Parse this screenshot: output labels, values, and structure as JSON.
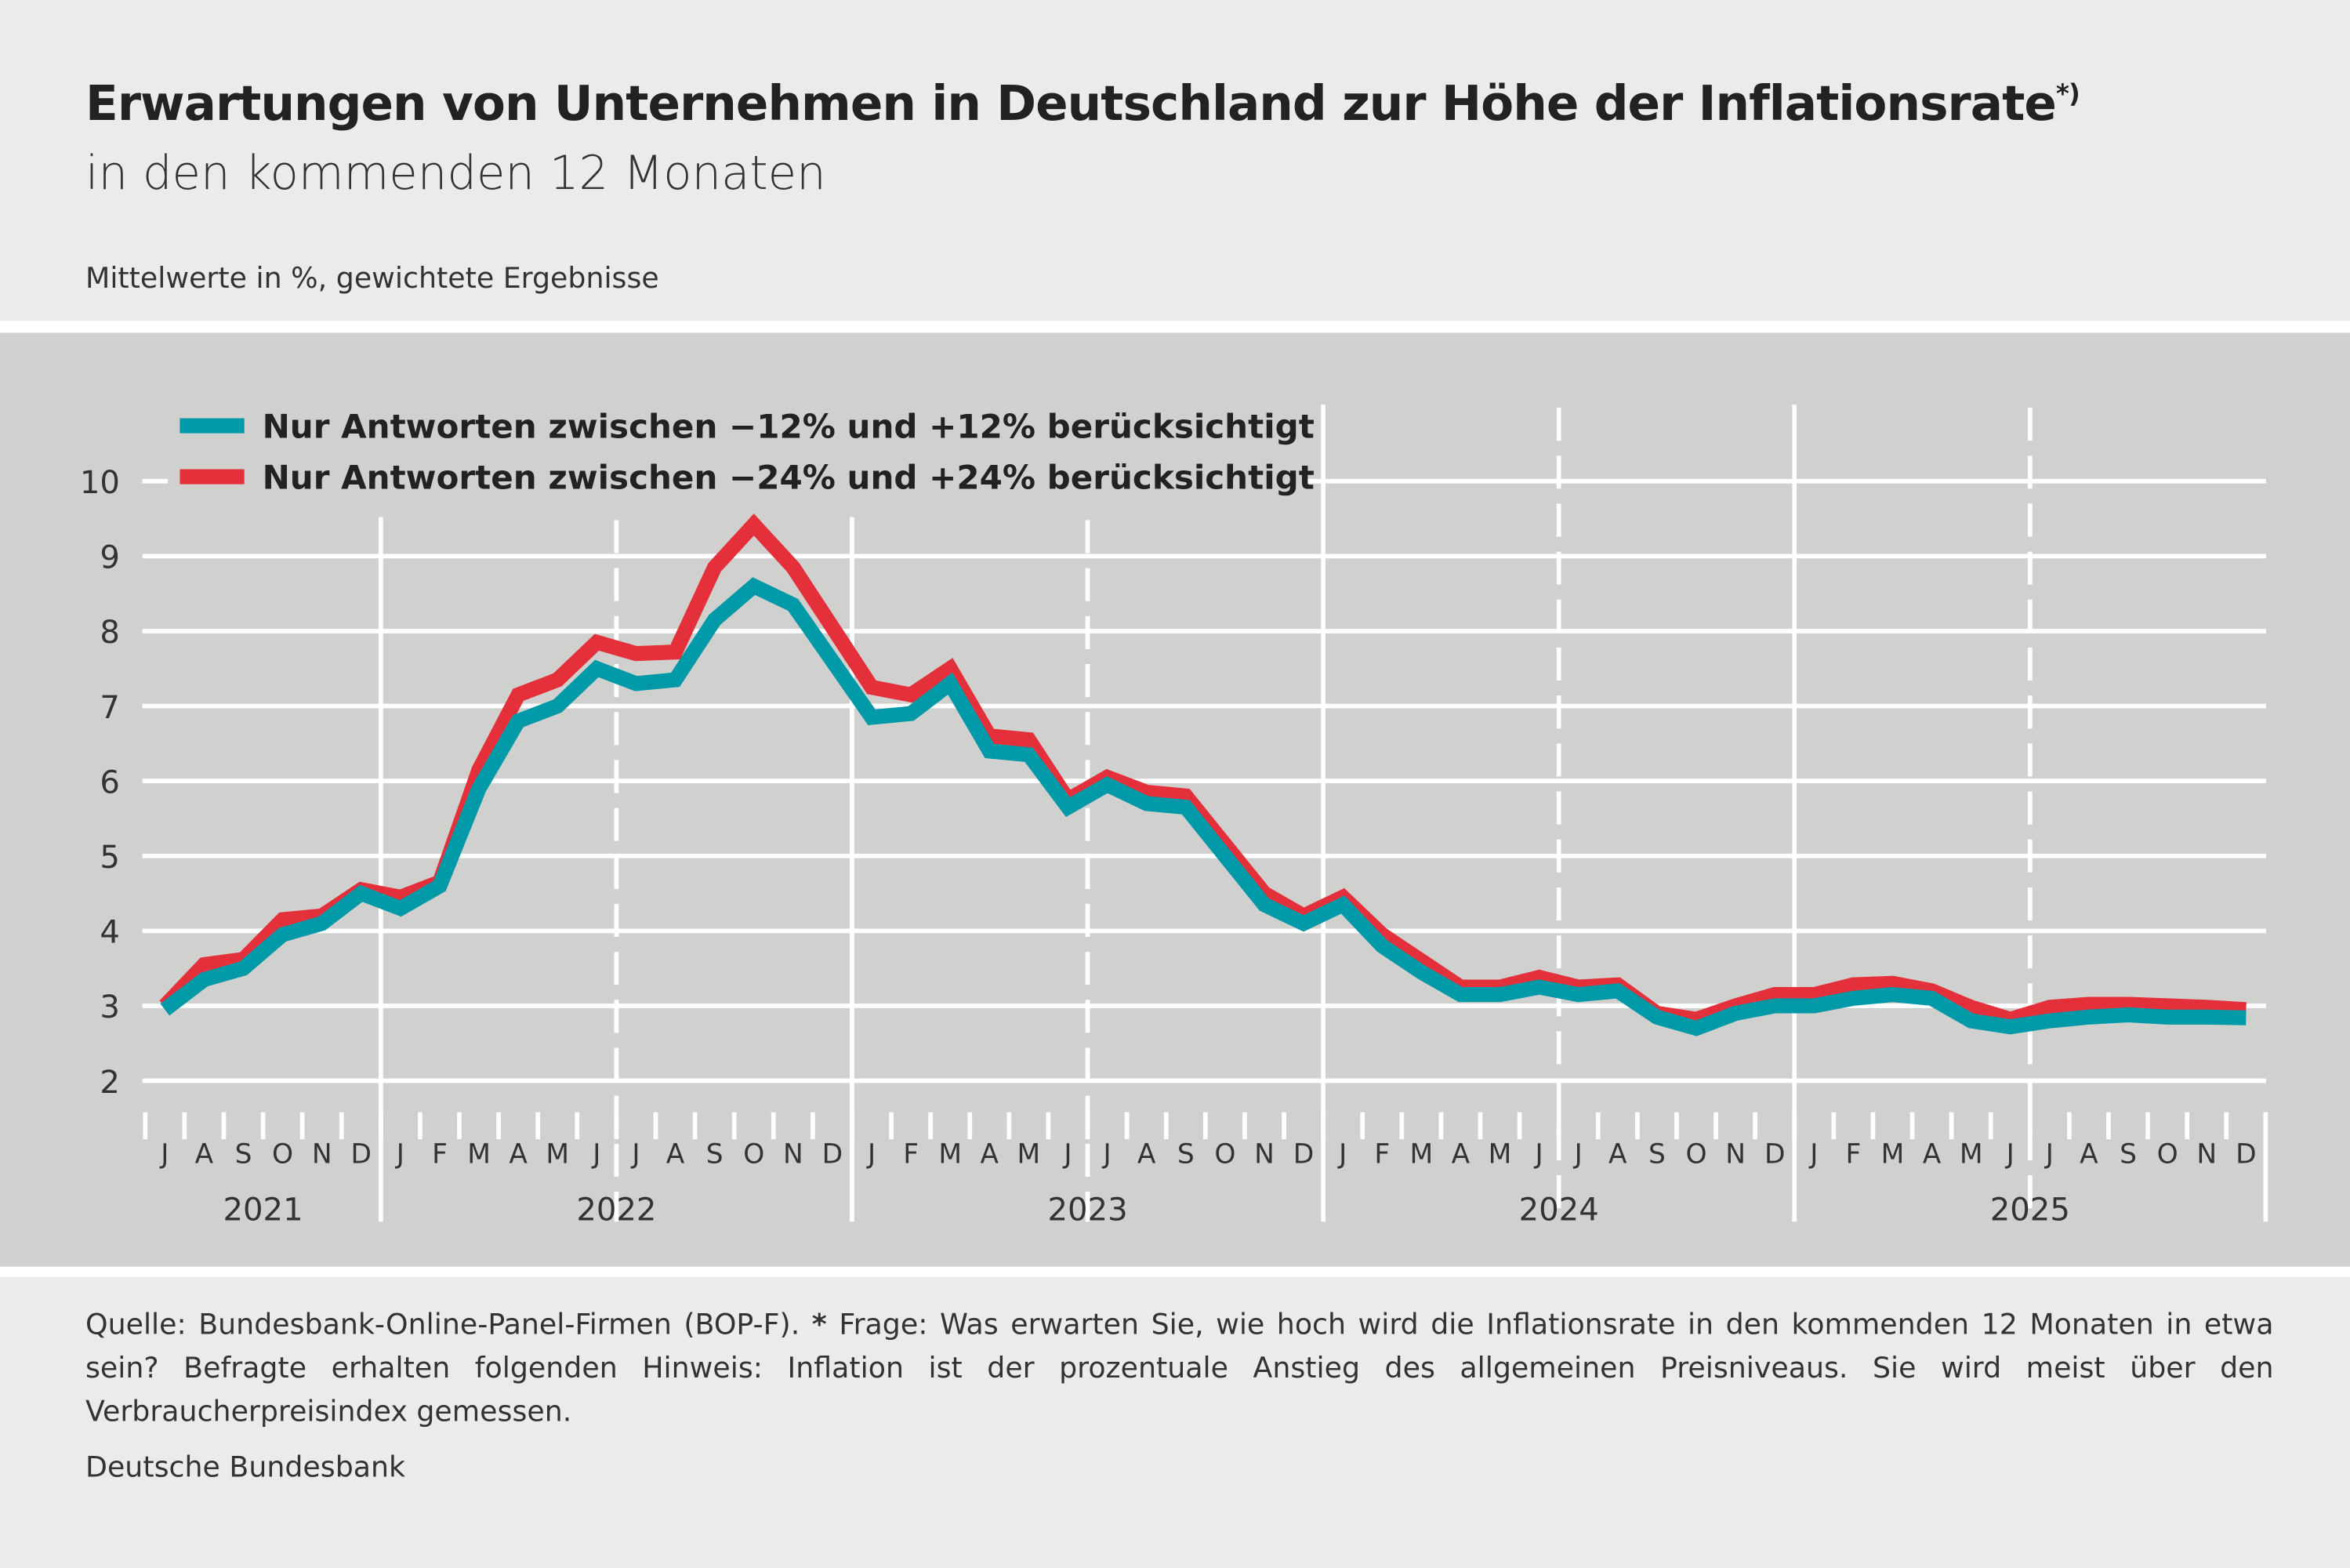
{
  "title": "Erwartungen von Unternehmen in Deutschland zur Höhe der Inflationsrate",
  "title_marker": "*)",
  "subtitle": "in den kommenden 12 Monaten",
  "unit_note": "Mittelwerte in %, gewichtete Ergebnisse",
  "footnote": {
    "source": "Quelle: Bundesbank-Online-Panel-Firmen (BOP-F).",
    "star": "*",
    "text": "Frage: Was erwarten Sie, wie hoch wird die Inflationsrate in den kommenden 12 Monaten in etwa sein? Befragte erhalten folgenden Hinweis: Inflation ist der prozentuale Anstieg des allgemeinen Preisniveaus. Sie wird meist über den Verbraucherpreisindex gemessen."
  },
  "publisher": "Deutsche Bundesbank",
  "chart_data": {
    "type": "line",
    "ylim": [
      2,
      10
    ],
    "yticks": [
      2,
      3,
      4,
      5,
      6,
      7,
      8,
      9,
      10
    ],
    "grid": true,
    "legend_placement": "top-left",
    "month_labels": [
      "J",
      "A",
      "S",
      "O",
      "N",
      "D",
      "J",
      "F",
      "M",
      "A",
      "M",
      "J",
      "J",
      "A",
      "S",
      "O",
      "N",
      "D",
      "J",
      "F",
      "M",
      "A",
      "M",
      "J",
      "J",
      "A",
      "S",
      "O",
      "N",
      "D",
      "J",
      "F",
      "M",
      "A",
      "M",
      "J",
      "J",
      "A",
      "S",
      "O",
      "N",
      "D",
      "J",
      "F",
      "M",
      "A",
      "M",
      "J",
      "J",
      "A",
      "S",
      "O",
      "N",
      "D"
    ],
    "year_labels": [
      "2021",
      "2022",
      "2023",
      "2024",
      "2025"
    ],
    "x_range": [
      "2021-07",
      "2025-12"
    ],
    "series": [
      {
        "name": "Nur Antworten zwischen −12% und +12% berücksichtigt",
        "color": "#0099a8",
        "values": [
          2.95,
          3.35,
          3.5,
          3.95,
          4.1,
          4.5,
          4.3,
          4.6,
          5.9,
          6.8,
          7.0,
          7.5,
          7.3,
          7.35,
          8.15,
          8.6,
          8.35,
          7.6,
          6.85,
          6.9,
          7.3,
          6.4,
          6.35,
          5.65,
          5.95,
          5.7,
          5.65,
          5.0,
          4.35,
          4.1,
          4.35,
          3.8,
          3.45,
          3.15,
          3.15,
          3.25,
          3.15,
          3.2,
          2.85,
          2.7,
          2.9,
          3.0,
          3.0,
          3.1,
          3.15,
          3.1,
          2.8,
          2.72,
          2.8,
          2.85,
          2.88,
          2.85,
          2.85,
          2.84
        ]
      },
      {
        "name": "Nur Antworten zwischen −24% und +24% berücksichtigt",
        "color": "#e3303a",
        "values": [
          3.0,
          3.55,
          3.62,
          4.15,
          4.2,
          4.55,
          4.45,
          4.65,
          6.15,
          7.15,
          7.35,
          7.85,
          7.7,
          7.72,
          8.85,
          9.42,
          8.85,
          8.05,
          7.25,
          7.15,
          7.5,
          6.6,
          6.55,
          5.75,
          6.05,
          5.85,
          5.8,
          5.15,
          4.5,
          4.2,
          4.45,
          3.95,
          3.6,
          3.25,
          3.25,
          3.38,
          3.25,
          3.28,
          2.9,
          2.82,
          3.0,
          3.15,
          3.15,
          3.28,
          3.3,
          3.2,
          2.98,
          2.82,
          2.98,
          3.02,
          3.02,
          3.0,
          2.98,
          2.95
        ]
      }
    ]
  }
}
